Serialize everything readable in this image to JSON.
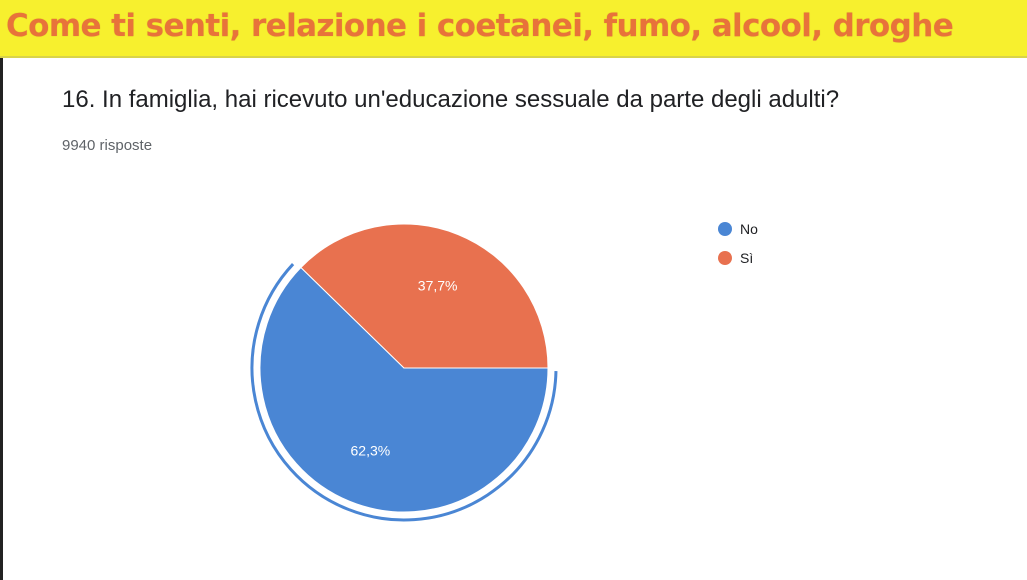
{
  "banner": {
    "title": "Come ti senti, relazione i coetanei, fumo, alcool, droghe",
    "background": "#f7f02e",
    "text_color": "#e8733a"
  },
  "question": {
    "text": "16. In famiglia, hai ricevuto un'educazione sessuale da parte degli adulti?",
    "responses": "9940 risposte"
  },
  "legend": {
    "placement": "top-right",
    "items": [
      {
        "label": "No",
        "color": "#4a86d4"
      },
      {
        "label": "Sì",
        "color": "#e8714f"
      }
    ]
  },
  "chart_data": {
    "type": "pie",
    "title": "16. In famiglia, hai ricevuto un'educazione sessuale da parte degli adulti?",
    "categories": [
      "No",
      "Sì"
    ],
    "values": [
      62.3,
      37.7
    ],
    "labels": [
      "62,3%",
      "37,7%"
    ],
    "colors": [
      "#4a86d4",
      "#e8714f"
    ],
    "highlighted": "No"
  }
}
